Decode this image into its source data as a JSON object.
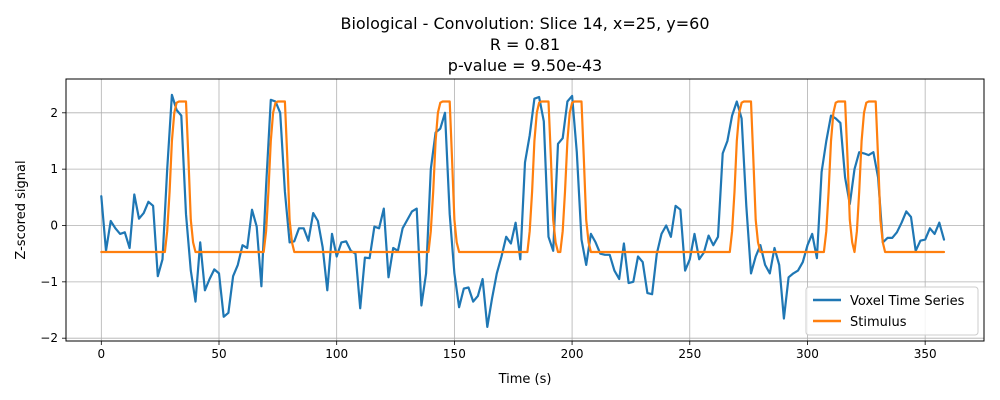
{
  "chart_data": {
    "type": "line",
    "title_lines": [
      "Biological - Convolution: Slice 14, x=25, y=60",
      "R = 0.81",
      "p-value = 9.50e-43"
    ],
    "xlabel": "Time (s)",
    "ylabel": "Z-scored signal",
    "xlim": [
      -15,
      375
    ],
    "ylim": [
      -2.05,
      2.6
    ],
    "xticks": [
      0,
      50,
      100,
      150,
      200,
      250,
      300,
      350
    ],
    "yticks": [
      -2,
      -1,
      0,
      1,
      2
    ],
    "tick_labels_x": [
      "0",
      "50",
      "100",
      "150",
      "200",
      "250",
      "300",
      "350"
    ],
    "tick_labels_y": [
      "−2",
      "−1",
      "0",
      "1",
      "2"
    ],
    "grid": true,
    "legend_position": "lower-right",
    "series": [
      {
        "name": "Voxel Time Series",
        "color": "#1f77b4",
        "x": [
          0,
          2,
          4,
          6,
          8,
          10,
          12,
          14,
          16,
          18,
          20,
          22,
          24,
          26,
          28,
          30,
          32,
          34,
          36,
          38,
          40,
          42,
          44,
          46,
          48,
          50,
          52,
          54,
          56,
          58,
          60,
          62,
          64,
          66,
          68,
          70,
          72,
          74,
          76,
          78,
          80,
          82,
          84,
          86,
          88,
          90,
          92,
          94,
          96,
          98,
          100,
          102,
          104,
          106,
          108,
          110,
          112,
          114,
          116,
          118,
          120,
          122,
          124,
          126,
          128,
          130,
          132,
          134,
          136,
          138,
          140,
          142,
          144,
          146,
          148,
          150,
          152,
          154,
          156,
          158,
          160,
          162,
          164,
          166,
          168,
          170,
          172,
          174,
          176,
          178,
          180,
          182,
          184,
          186,
          188,
          190,
          192,
          194,
          196,
          198,
          200,
          202,
          204,
          206,
          208,
          210,
          212,
          214,
          216,
          218,
          220,
          222,
          224,
          226,
          228,
          230,
          232,
          234,
          236,
          238,
          240,
          242,
          244,
          246,
          248,
          250,
          252,
          254,
          256,
          258,
          260,
          262,
          264,
          266,
          268,
          270,
          272,
          274,
          276,
          278,
          280,
          282,
          284,
          286,
          288,
          290,
          292,
          294,
          296,
          298,
          300,
          302,
          304,
          306,
          308,
          310,
          312,
          314,
          316,
          318,
          320,
          322,
          324,
          326,
          328,
          330,
          332,
          334,
          336,
          338,
          340,
          342,
          344,
          346,
          348,
          350,
          352,
          354,
          356,
          358
        ],
        "y": [
          0.52,
          -0.45,
          0.08,
          -0.05,
          -0.15,
          -0.12,
          -0.4,
          0.55,
          0.12,
          0.22,
          0.42,
          0.35,
          -0.9,
          -0.6,
          1.0,
          2.32,
          2.05,
          1.95,
          0.2,
          -0.8,
          -1.35,
          -0.3,
          -1.15,
          -0.95,
          -0.78,
          -0.85,
          -1.62,
          -1.55,
          -0.9,
          -0.7,
          -0.35,
          -0.4,
          0.28,
          -0.02,
          -1.08,
          0.7,
          2.23,
          2.2,
          2.0,
          0.6,
          -0.3,
          -0.28,
          -0.05,
          -0.05,
          -0.27,
          0.22,
          0.08,
          -0.38,
          -1.15,
          -0.15,
          -0.55,
          -0.3,
          -0.28,
          -0.45,
          -0.5,
          -1.47,
          -0.57,
          -0.58,
          -0.02,
          -0.05,
          0.3,
          -0.92,
          -0.4,
          -0.45,
          -0.05,
          0.1,
          0.25,
          0.3,
          -1.42,
          -0.85,
          1.0,
          1.65,
          1.72,
          2.0,
          0.2,
          -0.85,
          -1.45,
          -1.12,
          -1.1,
          -1.35,
          -1.25,
          -0.95,
          -1.8,
          -1.3,
          -0.85,
          -0.55,
          -0.2,
          -0.32,
          0.05,
          -0.6,
          1.12,
          1.6,
          2.25,
          2.28,
          1.85,
          -0.2,
          -0.45,
          1.45,
          1.55,
          2.2,
          2.3,
          1.3,
          -0.25,
          -0.7,
          -0.15,
          -0.3,
          -0.5,
          -0.52,
          -0.52,
          -0.8,
          -0.95,
          -0.32,
          -1.02,
          -1.0,
          -0.55,
          -0.65,
          -1.2,
          -1.22,
          -0.5,
          -0.15,
          0.0,
          -0.2,
          0.35,
          0.28,
          -0.8,
          -0.6,
          -0.15,
          -0.6,
          -0.48,
          -0.18,
          -0.35,
          -0.2,
          1.28,
          1.5,
          1.95,
          2.2,
          1.9,
          0.35,
          -0.85,
          -0.55,
          -0.35,
          -0.7,
          -0.85,
          -0.4,
          -0.7,
          -1.65,
          -0.92,
          -0.85,
          -0.8,
          -0.65,
          -0.35,
          -0.15,
          -0.58,
          0.95,
          1.5,
          1.95,
          1.9,
          1.82,
          0.85,
          0.38,
          1.0,
          1.3,
          1.28,
          1.25,
          1.3,
          0.85,
          -0.3,
          -0.22,
          -0.22,
          -0.12,
          0.05,
          0.25,
          0.15,
          -0.45,
          -0.27,
          -0.25,
          -0.05,
          -0.15,
          0.05,
          -0.25
        ]
      },
      {
        "name": "Stimulus",
        "color": "#ff7f0e",
        "x": [
          0,
          27,
          28,
          29,
          30,
          31,
          32,
          33,
          34,
          35,
          36,
          37,
          38,
          39,
          40,
          69,
          70,
          71,
          72,
          73,
          74,
          75,
          76,
          77,
          78,
          79,
          80,
          81,
          82,
          139,
          140,
          141,
          142,
          143,
          144,
          145,
          146,
          147,
          148,
          149,
          150,
          151,
          152,
          181,
          182,
          183,
          184,
          185,
          186,
          187,
          188,
          189,
          190,
          191,
          192,
          193,
          194,
          195,
          196,
          197,
          198,
          199,
          200,
          201,
          202,
          203,
          204,
          205,
          206,
          207,
          208,
          267,
          268,
          269,
          270,
          271,
          272,
          273,
          274,
          275,
          276,
          277,
          278,
          279,
          280,
          307,
          308,
          309,
          310,
          311,
          312,
          313,
          314,
          315,
          316,
          317,
          318,
          319,
          320,
          321,
          322,
          323,
          324,
          325,
          326,
          327,
          328,
          329,
          330,
          331,
          332,
          333,
          334,
          335,
          358
        ],
        "y": [
          -0.47,
          -0.47,
          -0.1,
          0.6,
          1.5,
          2.0,
          2.18,
          2.2,
          2.2,
          2.2,
          2.2,
          1.2,
          0.1,
          -0.3,
          -0.47,
          -0.47,
          -0.1,
          0.6,
          1.5,
          2.0,
          2.18,
          2.2,
          2.2,
          2.2,
          2.2,
          1.2,
          0.1,
          -0.3,
          -0.47,
          -0.47,
          -0.1,
          0.6,
          1.5,
          2.0,
          2.18,
          2.2,
          2.2,
          2.2,
          2.2,
          1.2,
          0.1,
          -0.3,
          -0.47,
          -0.47,
          -0.1,
          0.6,
          1.5,
          2.0,
          2.18,
          2.2,
          2.2,
          2.2,
          2.2,
          1.2,
          0.1,
          -0.3,
          -0.47,
          -0.47,
          -0.1,
          0.6,
          1.5,
          2.0,
          2.18,
          2.2,
          2.2,
          2.2,
          2.2,
          1.2,
          0.1,
          -0.3,
          -0.47,
          -0.47,
          -0.1,
          0.6,
          1.5,
          2.0,
          2.18,
          2.2,
          2.2,
          2.2,
          2.2,
          1.2,
          0.1,
          -0.3,
          -0.47,
          -0.47,
          -0.1,
          0.6,
          1.5,
          2.0,
          2.18,
          2.2,
          2.2,
          2.2,
          2.2,
          1.2,
          0.1,
          -0.3,
          -0.47,
          -0.1,
          0.6,
          1.5,
          2.0,
          2.18,
          2.2,
          2.2,
          2.2,
          2.2,
          1.2,
          0.1,
          -0.3,
          -0.47,
          -0.47,
          -0.47,
          -0.47
        ]
      }
    ]
  }
}
